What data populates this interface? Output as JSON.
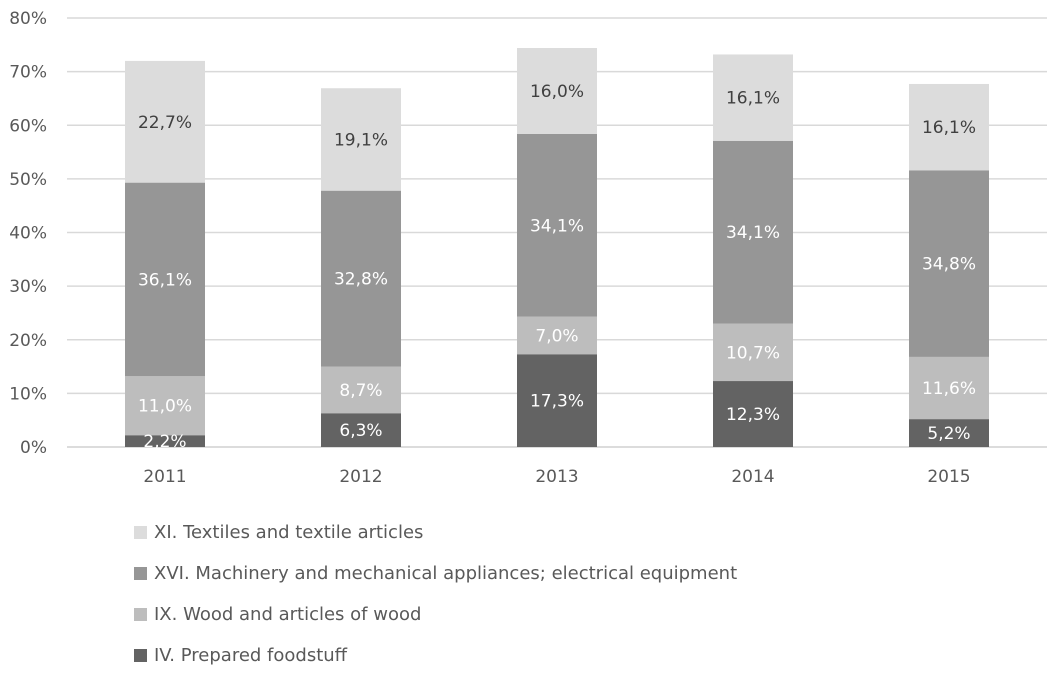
{
  "chart_data": {
    "type": "bar",
    "stacked": true,
    "categories": [
      "2011",
      "2012",
      "2013",
      "2014",
      "2015"
    ],
    "y_ticks": [
      "0%",
      "10%",
      "20%",
      "30%",
      "40%",
      "50%",
      "60%",
      "70%",
      "80%"
    ],
    "ylim": [
      0,
      80
    ],
    "grid": true,
    "legend_position": "bottom",
    "series": [
      {
        "name": "IV. Prepared foodstuff",
        "values": [
          2.2,
          6.3,
          17.3,
          12.3,
          5.2
        ],
        "labels": [
          "2,2%",
          "6,3%",
          "17,3%",
          "12,3%",
          "5,2%"
        ],
        "color": "#636363",
        "label_color": "#ffffff"
      },
      {
        "name": "IX. Wood and articles of wood",
        "values": [
          11.0,
          8.7,
          7.0,
          10.7,
          11.6
        ],
        "labels": [
          "11,0%",
          "8,7%",
          "7,0%",
          "10,7%",
          "11,6%"
        ],
        "color": "#bdbdbd",
        "label_color": "#ffffff"
      },
      {
        "name": "XVI. Machinery and mechanical appliances; electrical equipment",
        "values": [
          36.1,
          32.8,
          34.1,
          34.1,
          34.8
        ],
        "labels": [
          "36,1%",
          "32,8%",
          "34,1%",
          "34,1%",
          "34,8%"
        ],
        "color": "#969696",
        "label_color": "#ffffff"
      },
      {
        "name": "XI. Textiles and textile articles",
        "values": [
          22.7,
          19.1,
          16.0,
          16.1,
          16.1
        ],
        "labels": [
          "22,7%",
          "19,1%",
          "16,0%",
          "16,1%",
          "16,1%"
        ],
        "color": "#dcdcdc",
        "label_color": "#404040"
      }
    ],
    "legend_order": [
      3,
      2,
      1,
      0
    ]
  }
}
